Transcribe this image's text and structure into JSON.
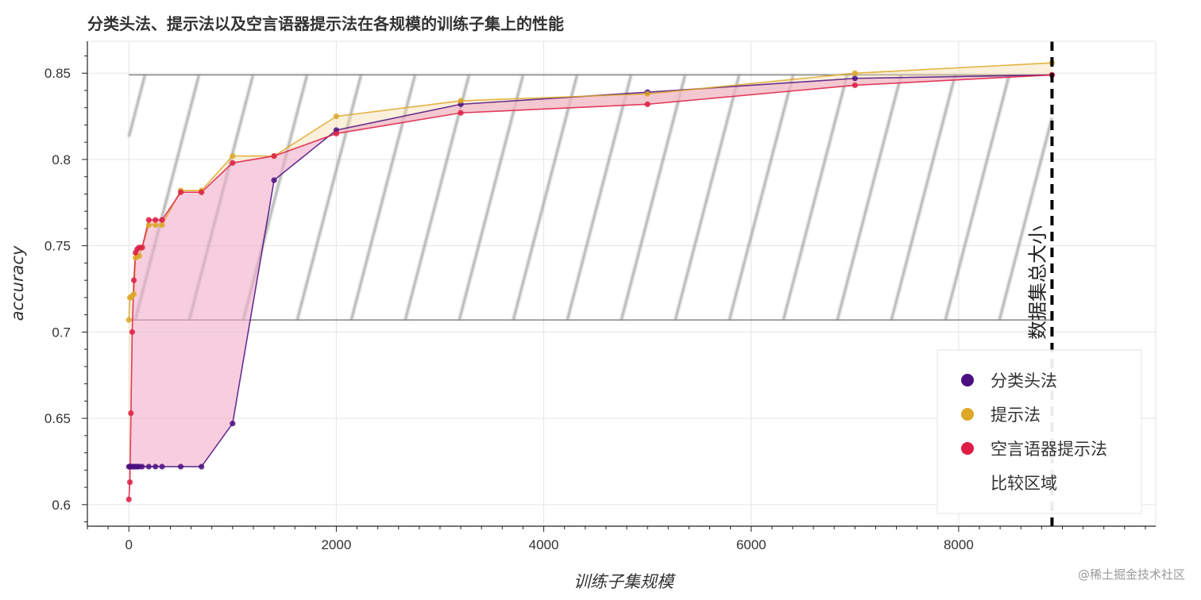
{
  "watermark": "@稀土掘金技术社区",
  "chart_data": {
    "type": "line",
    "title": "分类头法、提示法以及空言语器提示法在各规模的训练子集上的性能",
    "xlabel": "训练子集规模",
    "ylabel": "accuracy",
    "xlim": [
      -400,
      9900
    ],
    "ylim": [
      0.5875,
      0.8685
    ],
    "xticks": [
      0,
      2000,
      4000,
      6000,
      8000
    ],
    "yticks": [
      0.6,
      0.65,
      0.7,
      0.75,
      0.8,
      0.85
    ],
    "ytick_labels": [
      "0.6",
      "0.65",
      "0.7",
      "0.75",
      "0.8",
      "0.85"
    ],
    "grid": true,
    "legend_position": "bottom-right",
    "series": [
      {
        "name": "分类头法",
        "color": "#4b0f80",
        "x": [
          0,
          10,
          20,
          32,
          48,
          64,
          80,
          100,
          128,
          192,
          256,
          320,
          500,
          700,
          1000,
          1400,
          2000,
          3200,
          5000,
          7000,
          8900
        ],
        "y": [
          0.622,
          0.622,
          0.622,
          0.622,
          0.622,
          0.622,
          0.622,
          0.622,
          0.622,
          0.622,
          0.622,
          0.622,
          0.622,
          0.622,
          0.647,
          0.788,
          0.817,
          0.832,
          0.839,
          0.847,
          0.849
        ]
      },
      {
        "name": "提示法",
        "color": "#dda727",
        "x": [
          0,
          10,
          20,
          32,
          48,
          64,
          80,
          100,
          128,
          192,
          256,
          320,
          500,
          700,
          1000,
          1400,
          2000,
          3200,
          5000,
          7000,
          8900
        ],
        "y": [
          0.707,
          0.72,
          0.72,
          0.721,
          0.722,
          0.743,
          0.744,
          0.744,
          0.749,
          0.762,
          0.762,
          0.762,
          0.782,
          0.782,
          0.802,
          0.802,
          0.825,
          0.834,
          0.838,
          0.85,
          0.856
        ]
      },
      {
        "name": "空言语器提示法",
        "color": "#dd1d44",
        "x": [
          0,
          10,
          20,
          32,
          48,
          64,
          80,
          100,
          128,
          192,
          256,
          320,
          500,
          700,
          1000,
          1400,
          2000,
          3200,
          5000,
          7000,
          8900
        ],
        "y": [
          0.603,
          0.613,
          0.653,
          0.7,
          0.73,
          0.746,
          0.748,
          0.749,
          0.749,
          0.765,
          0.765,
          0.765,
          0.781,
          0.781,
          0.798,
          0.802,
          0.815,
          0.827,
          0.832,
          0.843,
          0.849
        ]
      }
    ],
    "comparison_band": {
      "label": "比较区域",
      "x": [
        0,
        8900
      ],
      "y": [
        0.707,
        0.849
      ]
    },
    "vline": {
      "x": 8900,
      "label": "数据集总大小",
      "style": "dashed",
      "color": "#000000"
    }
  }
}
